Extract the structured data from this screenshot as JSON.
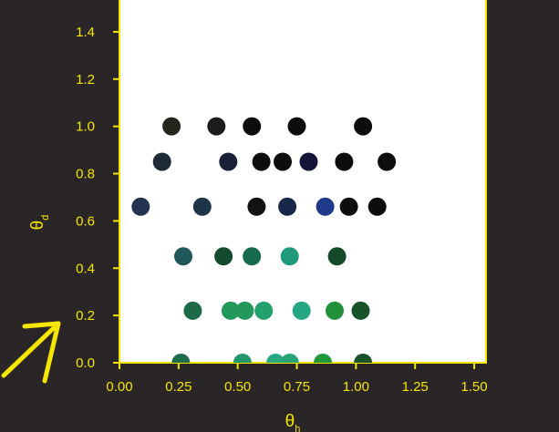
{
  "chart_data": {
    "type": "scatter",
    "title": "",
    "xlabel": "θ",
    "xlabel_sub": "h",
    "ylabel": "θ",
    "ylabel_sub": "d",
    "xlim": [
      0.0,
      1.55
    ],
    "ylim": [
      0.0,
      1.55
    ],
    "xticks": [
      0.0,
      0.25,
      0.5,
      0.75,
      1.0,
      1.25,
      1.5
    ],
    "xtick_labels": [
      "0.00",
      "0.25",
      "0.50",
      "0.75",
      "1.00",
      "1.25",
      "1.50"
    ],
    "yticks": [
      0.0,
      0.2,
      0.4,
      0.6,
      0.8,
      1.0,
      1.2,
      1.4
    ],
    "ytick_labels": [
      "0.0",
      "0.2",
      "0.4",
      "0.6",
      "0.8",
      "1.0",
      "1.2",
      "1.4"
    ],
    "grid": false,
    "legend": "none",
    "colors": {
      "background": "#2a2627",
      "plot_area": "#ffffff",
      "axis": "#f5e600",
      "tick_label": "#f5e600",
      "arrow": "#f5e600"
    },
    "points": [
      {
        "x": 0.22,
        "y": 1.0,
        "color": "#24261e"
      },
      {
        "x": 0.41,
        "y": 1.0,
        "color": "#1a1c1d"
      },
      {
        "x": 0.56,
        "y": 1.0,
        "color": "#0d0d0d"
      },
      {
        "x": 0.75,
        "y": 1.0,
        "color": "#0d0d0d"
      },
      {
        "x": 1.03,
        "y": 1.0,
        "color": "#0d0d0d"
      },
      {
        "x": 0.18,
        "y": 0.85,
        "color": "#1e2a36"
      },
      {
        "x": 0.46,
        "y": 0.85,
        "color": "#1a2138"
      },
      {
        "x": 0.6,
        "y": 0.85,
        "color": "#0d0d0d"
      },
      {
        "x": 0.69,
        "y": 0.85,
        "color": "#0d0d0d"
      },
      {
        "x": 0.8,
        "y": 0.85,
        "color": "#141438"
      },
      {
        "x": 0.95,
        "y": 0.85,
        "color": "#0d0d0d"
      },
      {
        "x": 1.13,
        "y": 0.85,
        "color": "#0d0d0d"
      },
      {
        "x": 0.09,
        "y": 0.66,
        "color": "#243450"
      },
      {
        "x": 0.35,
        "y": 0.66,
        "color": "#1e3448"
      },
      {
        "x": 0.58,
        "y": 0.66,
        "color": "#111312"
      },
      {
        "x": 0.71,
        "y": 0.66,
        "color": "#182848"
      },
      {
        "x": 0.87,
        "y": 0.66,
        "color": "#1f3a8a"
      },
      {
        "x": 0.97,
        "y": 0.66,
        "color": "#0d0d0d"
      },
      {
        "x": 1.09,
        "y": 0.66,
        "color": "#0d0d0d"
      },
      {
        "x": 0.27,
        "y": 0.45,
        "color": "#20585a"
      },
      {
        "x": 0.44,
        "y": 0.45,
        "color": "#134a30"
      },
      {
        "x": 0.56,
        "y": 0.45,
        "color": "#176a4c"
      },
      {
        "x": 0.72,
        "y": 0.45,
        "color": "#1f9a7a"
      },
      {
        "x": 0.92,
        "y": 0.45,
        "color": "#144a2a"
      },
      {
        "x": 0.31,
        "y": 0.22,
        "color": "#1e6a48"
      },
      {
        "x": 0.47,
        "y": 0.22,
        "color": "#22985a"
      },
      {
        "x": 0.53,
        "y": 0.22,
        "color": "#23985a"
      },
      {
        "x": 0.61,
        "y": 0.22,
        "color": "#23a06c"
      },
      {
        "x": 0.77,
        "y": 0.22,
        "color": "#24a682"
      },
      {
        "x": 0.91,
        "y": 0.22,
        "color": "#21903a"
      },
      {
        "x": 1.02,
        "y": 0.22,
        "color": "#16522a"
      },
      {
        "x": 0.26,
        "y": 0.0,
        "color": "#1e6a4c"
      },
      {
        "x": 0.52,
        "y": 0.0,
        "color": "#22986a"
      },
      {
        "x": 0.66,
        "y": 0.0,
        "color": "#26a882"
      },
      {
        "x": 0.72,
        "y": 0.0,
        "color": "#26a478"
      },
      {
        "x": 0.86,
        "y": 0.0,
        "color": "#1e9838"
      },
      {
        "x": 1.03,
        "y": 0.0,
        "color": "#16522a"
      }
    ]
  }
}
